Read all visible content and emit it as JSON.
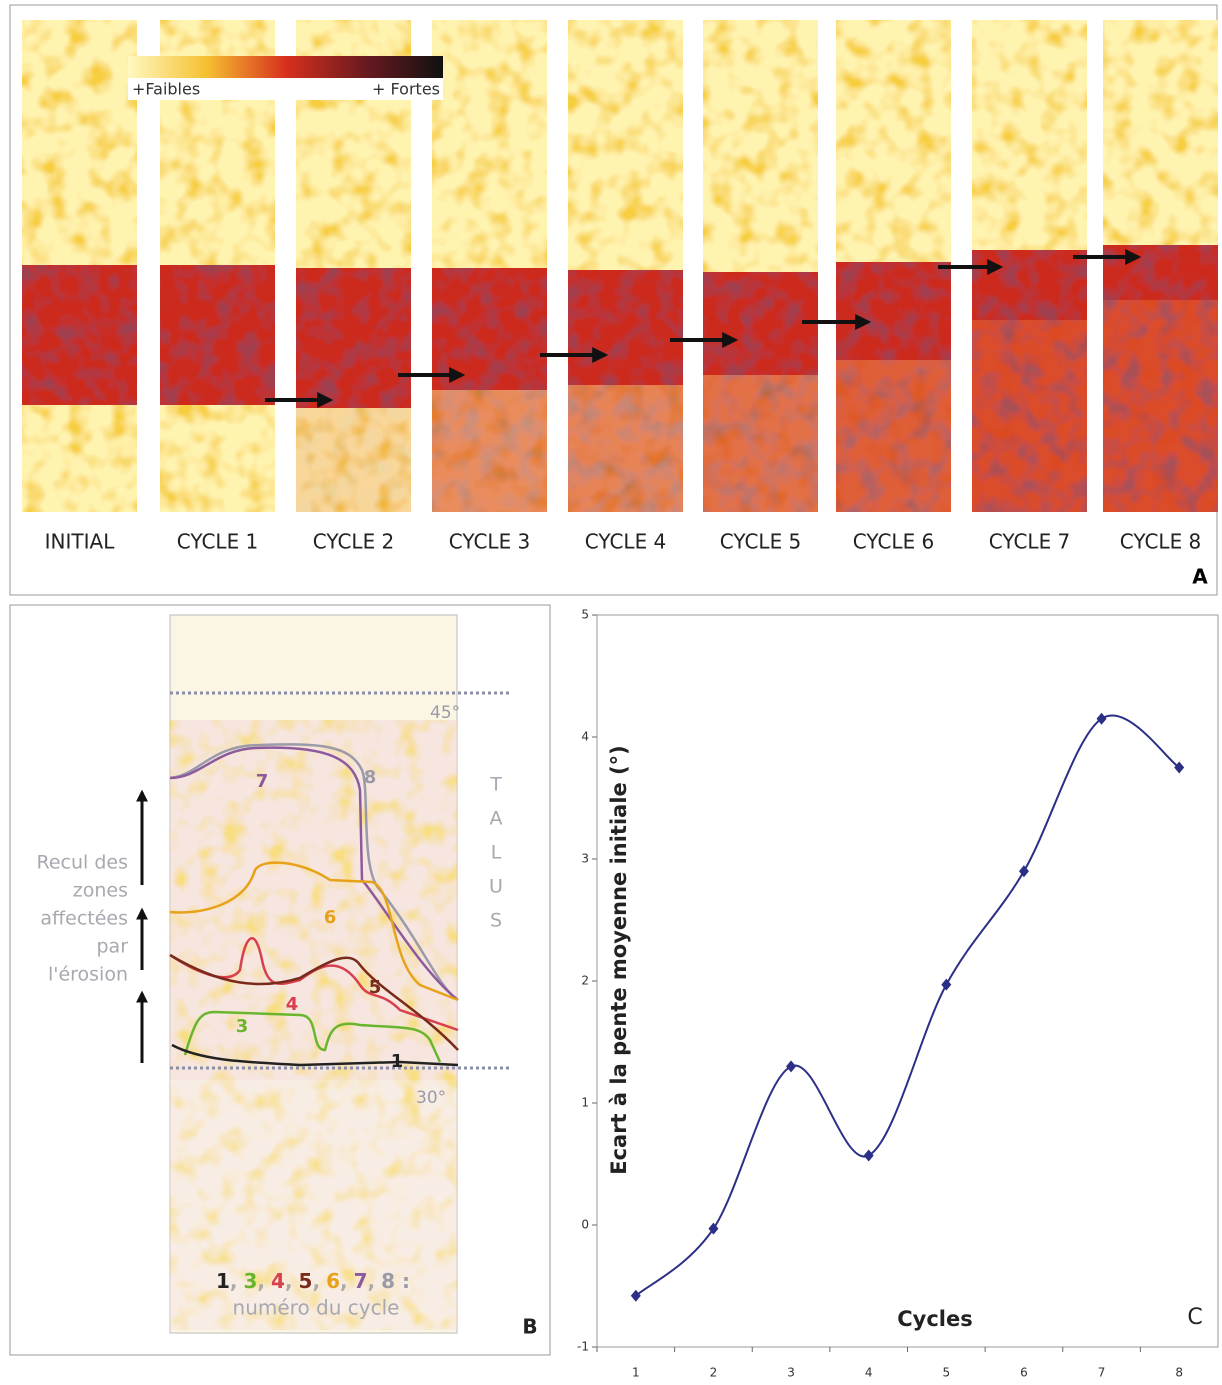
{
  "panel_a": {
    "strips": [
      "INITIAL",
      "CYCLE 1",
      "CYCLE 2",
      "CYCLE 3",
      "CYCLE 4",
      "CYCLE 5",
      "CYCLE 6",
      "CYCLE 7",
      "CYCLE 8"
    ],
    "scale_low": "+Faibles",
    "scale_high": "+ Fortes",
    "panel_label": "A"
  },
  "panel_b": {
    "side_text": [
      "Recul des",
      "zones",
      "affectées",
      "par",
      "l'érosion"
    ],
    "talus": [
      "T",
      "A",
      "L",
      "U",
      "S"
    ],
    "angle_top": "45°",
    "angle_bottom": "30°",
    "curve_labels": [
      {
        "text": "7",
        "color": "#8e5a9e"
      },
      {
        "text": "8",
        "color": "#9a9aa8"
      },
      {
        "text": "6",
        "color": "#e8a21a"
      },
      {
        "text": "5",
        "color": "#7a2a1a"
      },
      {
        "text": "4",
        "color": "#d84050"
      },
      {
        "text": "3",
        "color": "#6ab52e"
      },
      {
        "text": "1",
        "color": "#222222"
      }
    ],
    "legend_tokens": [
      {
        "text": "1",
        "color": "#222222"
      },
      {
        "text": ",",
        "color": "#aaaaaa"
      },
      {
        "text": "3",
        "color": "#6ab52e"
      },
      {
        "text": ",",
        "color": "#aaaaaa"
      },
      {
        "text": "4",
        "color": "#d84050"
      },
      {
        "text": ",",
        "color": "#aaaaaa"
      },
      {
        "text": "5",
        "color": "#7a2a1a"
      },
      {
        "text": ",",
        "color": "#aaaaaa"
      },
      {
        "text": "6",
        "color": "#e8a21a"
      },
      {
        "text": ",",
        "color": "#aaaaaa"
      },
      {
        "text": "7",
        "color": "#8e5a9e"
      },
      {
        "text": ",",
        "color": "#aaaaaa"
      },
      {
        "text": "8 :",
        "color": "#9a9aa8"
      }
    ],
    "legend_caption": "numéro du cycle",
    "panel_label": "B"
  },
  "chart_data": {
    "type": "line",
    "x_label": "Cycles",
    "y_label": "Ecart à la pente moyenne initiale (°)",
    "panel_label": "C",
    "categories": [
      "1",
      "2",
      "3",
      "4",
      "5",
      "6",
      "7",
      "8"
    ],
    "series": [
      {
        "name": "Ecart",
        "color": "#2b2f86",
        "values": [
          -0.58,
          -0.03,
          1.3,
          0.57,
          1.97,
          2.9,
          4.15,
          3.75
        ]
      }
    ],
    "ylim": [
      -1,
      5
    ],
    "yticks": [
      -1,
      0,
      1,
      2,
      3,
      4,
      5
    ],
    "grid": false
  }
}
